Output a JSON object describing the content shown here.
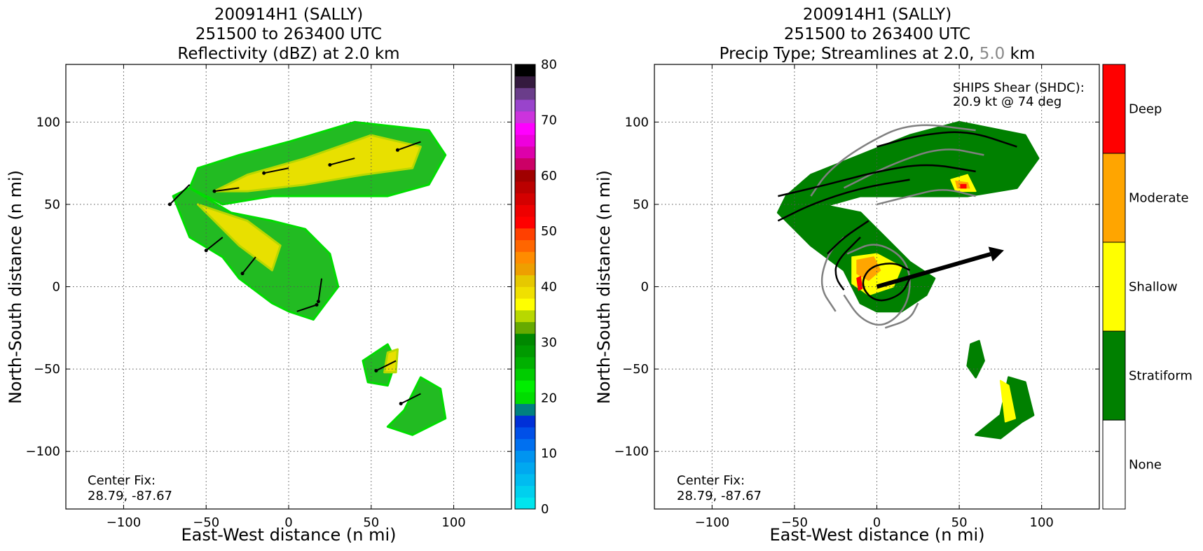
{
  "chart_data": [
    {
      "type": "heatmap",
      "title": [
        "200914H1 (SALLY)",
        "251500 to 263400 UTC",
        "Reflectivity (dBZ) at 2.0 km"
      ],
      "xlabel": "East-West distance (n mi)",
      "ylabel": "North-South distance (n mi)",
      "xlim": [
        -135,
        135
      ],
      "ylim": [
        -135,
        135
      ],
      "xticks": [
        -100,
        -50,
        0,
        50,
        100
      ],
      "yticks": [
        -100,
        -50,
        0,
        50,
        100
      ],
      "grid": true,
      "annotation": [
        "Center Fix:",
        "28.79, -87.67"
      ],
      "colorbar": {
        "ticks": [
          0,
          10,
          20,
          30,
          40,
          50,
          60,
          70,
          80
        ],
        "range": [
          0,
          80
        ],
        "colors": [
          "#00e5ee",
          "#00d0ee",
          "#00bcf0",
          "#00a8f0",
          "#0094f0",
          "#0070f0",
          "#0050e8",
          "#0030d8",
          "#008080",
          "#00dd00",
          "#00ee00",
          "#00cc00",
          "#00b000",
          "#009a00",
          "#008800",
          "#66aa00",
          "#b8d800",
          "#ffff00",
          "#f0e000",
          "#e6c800",
          "#ee9f00",
          "#ff8c00",
          "#ff6600",
          "#ff4000",
          "#ff0000",
          "#ee0000",
          "#d40000",
          "#bb0000",
          "#a00000",
          "#cc0066",
          "#dd00aa",
          "#ee00dd",
          "#ff00ff",
          "#cc33dd",
          "#9944cc",
          "#6a3d8a",
          "#341a3e",
          "#000000"
        ]
      },
      "echo_regions": [
        {
          "name": "north-band",
          "points": [
            [
              -60,
              60
            ],
            [
              -55,
              72
            ],
            [
              -30,
              80
            ],
            [
              0,
              88
            ],
            [
              40,
              100
            ],
            [
              85,
              95
            ],
            [
              95,
              80
            ],
            [
              85,
              62
            ],
            [
              60,
              55
            ],
            [
              20,
              55
            ],
            [
              -10,
              55
            ],
            [
              -40,
              50
            ]
          ]
        },
        {
          "name": "west-arm",
          "points": [
            [
              -60,
              60
            ],
            [
              -70,
              55
            ],
            [
              -60,
              30
            ],
            [
              -40,
              18
            ],
            [
              -30,
              5
            ],
            [
              -10,
              -10
            ],
            [
              0,
              -15
            ],
            [
              15,
              -20
            ],
            [
              30,
              0
            ],
            [
              25,
              20
            ],
            [
              10,
              35
            ],
            [
              -10,
              40
            ],
            [
              -35,
              45
            ]
          ]
        },
        {
          "name": "south-cell-a",
          "points": [
            [
              45,
              -45
            ],
            [
              60,
              -35
            ],
            [
              65,
              -45
            ],
            [
              60,
              -60
            ],
            [
              48,
              -58
            ]
          ]
        },
        {
          "name": "south-cell-b",
          "points": [
            [
              60,
              -85
            ],
            [
              70,
              -75
            ],
            [
              80,
              -55
            ],
            [
              92,
              -62
            ],
            [
              95,
              -80
            ],
            [
              85,
              -85
            ],
            [
              75,
              -90
            ]
          ]
        }
      ],
      "core_regions": [
        {
          "name": "north-core",
          "points": [
            [
              -45,
              58
            ],
            [
              -25,
              68
            ],
            [
              10,
              78
            ],
            [
              50,
              92
            ],
            [
              80,
              85
            ],
            [
              75,
              72
            ],
            [
              45,
              68
            ],
            [
              10,
              62
            ],
            [
              -25,
              58
            ]
          ]
        },
        {
          "name": "arm-core",
          "points": [
            [
              -55,
              50
            ],
            [
              -45,
              40
            ],
            [
              -30,
              25
            ],
            [
              -10,
              10
            ],
            [
              -5,
              25
            ],
            [
              -25,
              40
            ]
          ]
        },
        {
          "name": "south-core",
          "points": [
            [
              60,
              -40
            ],
            [
              66,
              -38
            ],
            [
              65,
              -52
            ],
            [
              58,
              -52
            ]
          ]
        }
      ],
      "wind_arrows": [
        {
          "x": -60,
          "y": 62,
          "dx": -12,
          "dy": -12
        },
        {
          "x": -30,
          "y": 60,
          "dx": -15,
          "dy": -2
        },
        {
          "x": 0,
          "y": 72,
          "dx": -15,
          "dy": -3
        },
        {
          "x": 40,
          "y": 78,
          "dx": -15,
          "dy": -4
        },
        {
          "x": 80,
          "y": 88,
          "dx": -14,
          "dy": -5
        },
        {
          "x": -40,
          "y": 30,
          "dx": -10,
          "dy": -8
        },
        {
          "x": -20,
          "y": 18,
          "dx": -8,
          "dy": -10
        },
        {
          "x": 20,
          "y": 5,
          "dx": -2,
          "dy": -14
        },
        {
          "x": 5,
          "y": -15,
          "dx": 12,
          "dy": 4
        },
        {
          "x": 65,
          "y": -45,
          "dx": -12,
          "dy": -6
        },
        {
          "x": 80,
          "y": -65,
          "dx": -12,
          "dy": -6
        }
      ]
    },
    {
      "type": "heatmap",
      "title": [
        "200914H1 (SALLY)",
        "251500 to 263400 UTC",
        "Precip Type; Streamlines at 2.0,",
        "5.0",
        "km"
      ],
      "xlabel": "East-West distance (n mi)",
      "ylabel": "North-South distance (n mi)",
      "xlim": [
        -135,
        135
      ],
      "ylim": [
        -135,
        135
      ],
      "xticks": [
        -100,
        -50,
        0,
        50,
        100
      ],
      "yticks": [
        -100,
        -50,
        0,
        50,
        100
      ],
      "grid": true,
      "annotation": [
        "Center Fix:",
        "28.79, -87.67"
      ],
      "shear_text": [
        "SHIPS Shear (SHDC):",
        "20.9 kt @ 74 deg"
      ],
      "shear_vector": {
        "speed_kt": 20.9,
        "direction_deg": 74
      },
      "colorbar": {
        "categories": [
          "None",
          "Stratiform",
          "Shallow",
          "Moderate",
          "Deep"
        ],
        "colors": [
          "#ffffff",
          "#008000",
          "#ffff00",
          "#ffa500",
          "#ff0000"
        ]
      },
      "stratiform_regions": [
        {
          "name": "north-band",
          "points": [
            [
              -55,
              55
            ],
            [
              -40,
              68
            ],
            [
              -10,
              80
            ],
            [
              20,
              92
            ],
            [
              50,
              100
            ],
            [
              90,
              92
            ],
            [
              98,
              78
            ],
            [
              85,
              60
            ],
            [
              55,
              55
            ],
            [
              20,
              55
            ],
            [
              -10,
              55
            ],
            [
              -35,
              48
            ]
          ]
        },
        {
          "name": "west-arm",
          "points": [
            [
              -55,
              55
            ],
            [
              -60,
              45
            ],
            [
              -40,
              25
            ],
            [
              -20,
              10
            ],
            [
              -10,
              -10
            ],
            [
              0,
              -15
            ],
            [
              15,
              -15
            ],
            [
              30,
              -5
            ],
            [
              35,
              5
            ],
            [
              20,
              15
            ],
            [
              5,
              30
            ],
            [
              -10,
              45
            ],
            [
              -35,
              50
            ]
          ]
        },
        {
          "name": "south-cell-a",
          "points": [
            [
              57,
              -35
            ],
            [
              62,
              -33
            ],
            [
              65,
              -45
            ],
            [
              60,
              -55
            ],
            [
              55,
              -48
            ]
          ]
        },
        {
          "name": "south-cell-b",
          "points": [
            [
              60,
              -90
            ],
            [
              75,
              -78
            ],
            [
              80,
              -55
            ],
            [
              90,
              -58
            ],
            [
              95,
              -78
            ],
            [
              88,
              -82
            ],
            [
              75,
              -92
            ]
          ]
        }
      ],
      "shallow_regions": [
        {
          "name": "eyewall",
          "points": [
            [
              -15,
              18
            ],
            [
              0,
              20
            ],
            [
              15,
              12
            ],
            [
              10,
              0
            ],
            [
              -5,
              -5
            ],
            [
              -15,
              2
            ]
          ]
        },
        {
          "name": "south-cell-core",
          "points": [
            [
              75,
              -57
            ],
            [
              80,
              -60
            ],
            [
              84,
              -80
            ],
            [
              78,
              -82
            ]
          ]
        },
        {
          "name": "north-spot",
          "points": [
            [
              45,
              65
            ],
            [
              55,
              68
            ],
            [
              60,
              58
            ],
            [
              48,
              58
            ]
          ]
        }
      ],
      "moderate_regions": [
        {
          "name": "eyewall-rim",
          "points": [
            [
              -12,
              16
            ],
            [
              -2,
              18
            ],
            [
              2,
              10
            ],
            [
              -5,
              4
            ],
            [
              -12,
              8
            ]
          ]
        },
        {
          "name": "north-spot-rim",
          "points": [
            [
              48,
              64
            ],
            [
              55,
              63
            ],
            [
              56,
              60
            ],
            [
              49,
              60
            ]
          ]
        }
      ],
      "deep_regions": [
        {
          "name": "eyewall-deep",
          "points": [
            [
              -12,
              5
            ],
            [
              -10,
              6
            ],
            [
              -9,
              -1
            ],
            [
              -11,
              -2
            ]
          ]
        },
        {
          "name": "north-deep",
          "points": [
            [
              51,
              62
            ],
            [
              54,
              62
            ],
            [
              54,
              60
            ],
            [
              51,
              60
            ]
          ]
        }
      ],
      "streamlines_dark": [
        [
          [
            85,
            85
          ],
          [
            55,
            95
          ],
          [
            25,
            92
          ],
          [
            0,
            85
          ]
        ],
        [
          [
            60,
            70
          ],
          [
            30,
            75
          ],
          [
            0,
            70
          ],
          [
            -30,
            62
          ],
          [
            -60,
            55
          ]
        ],
        [
          [
            20,
            65
          ],
          [
            -10,
            60
          ],
          [
            -40,
            50
          ],
          [
            -60,
            40
          ]
        ],
        [
          [
            -5,
            40
          ],
          [
            -20,
            30
          ],
          [
            -30,
            20
          ]
        ],
        [
          [
            -10,
            30
          ],
          [
            -25,
            15
          ],
          [
            -25,
            5
          ],
          [
            -20,
            -2
          ]
        ],
        [
          [
            20,
            10
          ],
          [
            10,
            15
          ],
          [
            -5,
            12
          ],
          [
            -10,
            0
          ],
          [
            0,
            -10
          ],
          [
            15,
            -5
          ],
          [
            20,
            5
          ]
        ]
      ],
      "streamlines_gray": [
        [
          [
            -20,
            30
          ],
          [
            -30,
            20
          ],
          [
            -35,
            0
          ],
          [
            -25,
            -15
          ]
        ],
        [
          [
            60,
            95
          ],
          [
            20,
            100
          ],
          [
            -10,
            85
          ],
          [
            -30,
            70
          ],
          [
            -40,
            55
          ]
        ],
        [
          [
            65,
            80
          ],
          [
            40,
            85
          ],
          [
            10,
            75
          ],
          [
            -20,
            60
          ]
        ],
        [
          [
            60,
            55
          ],
          [
            40,
            60
          ],
          [
            20,
            55
          ],
          [
            0,
            50
          ]
        ],
        [
          [
            -18,
            20
          ],
          [
            0,
            28
          ],
          [
            20,
            15
          ],
          [
            20,
            -10
          ],
          [
            5,
            -25
          ],
          [
            -10,
            -20
          ],
          [
            -20,
            -5
          ]
        ],
        [
          [
            5,
            -25
          ],
          [
            20,
            -20
          ],
          [
            25,
            -10
          ]
        ]
      ]
    }
  ]
}
